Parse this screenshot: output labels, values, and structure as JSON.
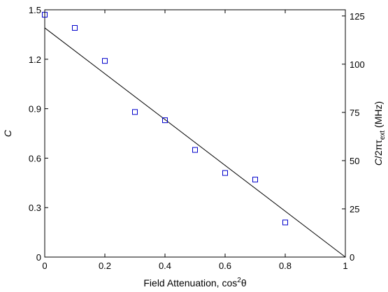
{
  "chart_data": {
    "type": "scatter",
    "xlabel": "Field Attenuation, cos",
    "xlabel_sup": "2",
    "xlabel_tail": "θ",
    "ylabel": "C",
    "y2label": {
      "lead": "C",
      "mid": "/2πτ",
      "sub": "ext",
      "tail": " (MHz)"
    },
    "xlim": [
      0,
      1
    ],
    "ylim": [
      0,
      1.5
    ],
    "y2lim": [
      0,
      128.2
    ],
    "xticks": [
      0,
      0.2,
      0.4,
      0.6,
      0.8,
      1
    ],
    "xtick_labels": [
      "0",
      "0.2",
      "0.4",
      "0.6",
      "0.8",
      "1"
    ],
    "yticks": [
      0,
      0.3,
      0.6,
      0.9,
      1.2,
      1.5
    ],
    "ytick_labels": [
      "0",
      "0.3",
      "0.6",
      "0.9",
      "1.2",
      "1.5"
    ],
    "y2ticks": [
      0,
      25,
      50,
      75,
      100,
      125
    ],
    "y2tick_labels": [
      "0",
      "25",
      "50",
      "75",
      "100",
      "125"
    ],
    "grid": false,
    "series": [
      {
        "marker": "square",
        "color": "#0000cc",
        "x": [
          0,
          0.1,
          0.2,
          0.3,
          0.4,
          0.5,
          0.6,
          0.7,
          0.8
        ],
        "y": [
          1.47,
          1.39,
          1.19,
          0.88,
          0.83,
          0.65,
          0.51,
          0.47,
          0.21
        ]
      }
    ],
    "fit_line": {
      "color": "#000000",
      "x": [
        0,
        1
      ],
      "y": [
        1.39,
        0
      ]
    }
  }
}
